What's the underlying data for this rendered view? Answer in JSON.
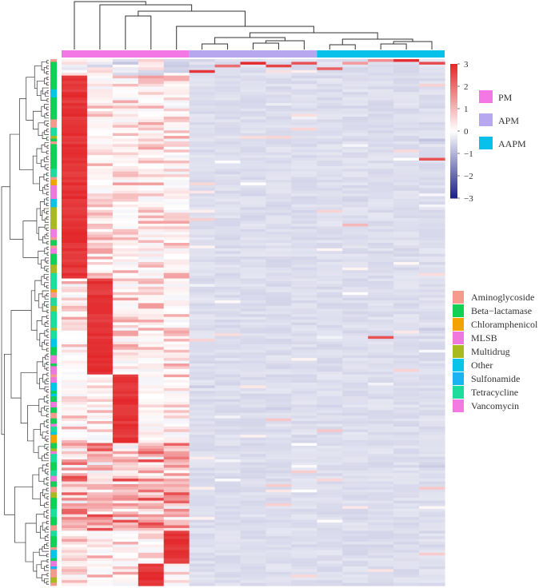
{
  "chart_data": {
    "type": "heatmap",
    "title": "",
    "sample_groups": [
      {
        "name": "PM",
        "count": 5
      },
      {
        "name": "APM",
        "count": 5
      },
      {
        "name": "AAPM",
        "count": 5
      }
    ],
    "colorbar": {
      "min": -3,
      "max": 3,
      "ticks": [
        3,
        2,
        1,
        0,
        -1,
        -2,
        -3
      ],
      "colors": {
        "low": "#1b1f8a",
        "mid": "#ffffff",
        "high": "#e3272a"
      }
    },
    "group_legend": [
      {
        "label": "PM",
        "color": "#f477e6"
      },
      {
        "label": "APM",
        "color": "#b7a7ee"
      },
      {
        "label": "AAPM",
        "color": "#07c1ea"
      }
    ],
    "class_legend": [
      {
        "label": "Aminoglycoside",
        "color": "#f59a8c"
      },
      {
        "label": "Beta−lactamase",
        "color": "#12cf55"
      },
      {
        "label": "Chloramphenicol",
        "color": "#f3a300"
      },
      {
        "label": "MLSB",
        "color": "#ef78dd"
      },
      {
        "label": "Multidrug",
        "color": "#a9ba1e"
      },
      {
        "label": "Other",
        "color": "#07c4e8"
      },
      {
        "label": "Sulfonamide",
        "color": "#1ab4f2"
      },
      {
        "label": "Tetracycline",
        "color": "#1edc9c"
      },
      {
        "label": "Vancomycin",
        "color": "#f27ae0"
      }
    ],
    "n_rows": 192,
    "row_blocks": [
      {
        "start": 0,
        "end": 6,
        "pattern": "upper",
        "value": -0.5
      },
      {
        "start": 6,
        "end": 80,
        "pattern": "col0_high",
        "value": 3.0
      },
      {
        "start": 80,
        "end": 115,
        "pattern": "col1_high",
        "value": 3.0
      },
      {
        "start": 115,
        "end": 140,
        "pattern": "col2_high",
        "value": 3.0
      },
      {
        "start": 140,
        "end": 172,
        "pattern": "mixed",
        "value": 2.0
      },
      {
        "start": 172,
        "end": 184,
        "pattern": "col4_high",
        "value": 3.0
      },
      {
        "start": 184,
        "end": 192,
        "pattern": "col3_high",
        "value": 3.0
      }
    ],
    "group_hot_cells": [
      {
        "row": 1,
        "col": 7,
        "value": 3.0
      },
      {
        "row": 2,
        "col": 8,
        "value": 2.6
      },
      {
        "row": 1,
        "col": 9,
        "value": 2.4
      },
      {
        "row": 3,
        "col": 10,
        "value": 2.2
      },
      {
        "row": 2,
        "col": 6,
        "value": 2.0
      },
      {
        "row": 4,
        "col": 5,
        "value": 2.8
      },
      {
        "row": 0,
        "col": 13,
        "value": 2.9
      },
      {
        "row": 1,
        "col": 14,
        "value": 2.5
      },
      {
        "row": 0,
        "col": 12,
        "value": 1.6
      },
      {
        "row": 1,
        "col": 11,
        "value": 1.4
      },
      {
        "row": 36,
        "col": 14,
        "value": 2.4
      },
      {
        "row": 101,
        "col": 12,
        "value": 2.4
      },
      {
        "row": 21,
        "col": 4,
        "value": 1.0
      },
      {
        "row": 60,
        "col": 11,
        "value": 1.0
      }
    ],
    "notes": "Hierarchically clustered heatmap of antibiotic resistance gene abundance (row z-scores) across 15 samples in three treatment groups; row-side color bar shows antibiotic class."
  }
}
